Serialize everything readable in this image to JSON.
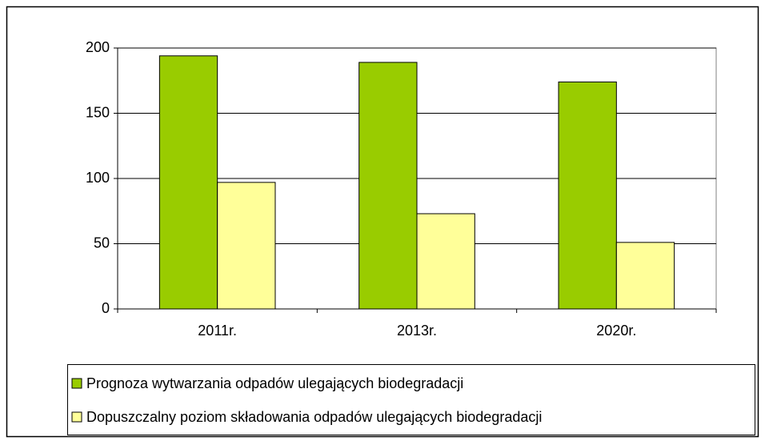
{
  "chart_data": {
    "type": "bar",
    "categories": [
      "2011r.",
      "2013r.",
      "2020r."
    ],
    "series": [
      {
        "name": "Prognoza wytwarzania odpadów ulegających biodegradacji",
        "color": "#99cc00",
        "values": [
          194,
          189,
          174
        ]
      },
      {
        "name": "Dopuszczalny poziom składowania odpadów ulegających biodegradacji",
        "color": "#ffff99",
        "values": [
          97,
          73,
          51
        ]
      }
    ],
    "ylim": [
      0,
      200
    ],
    "yticks": [
      0,
      50,
      100,
      150,
      200
    ],
    "grid": true,
    "legend": "bottom"
  }
}
